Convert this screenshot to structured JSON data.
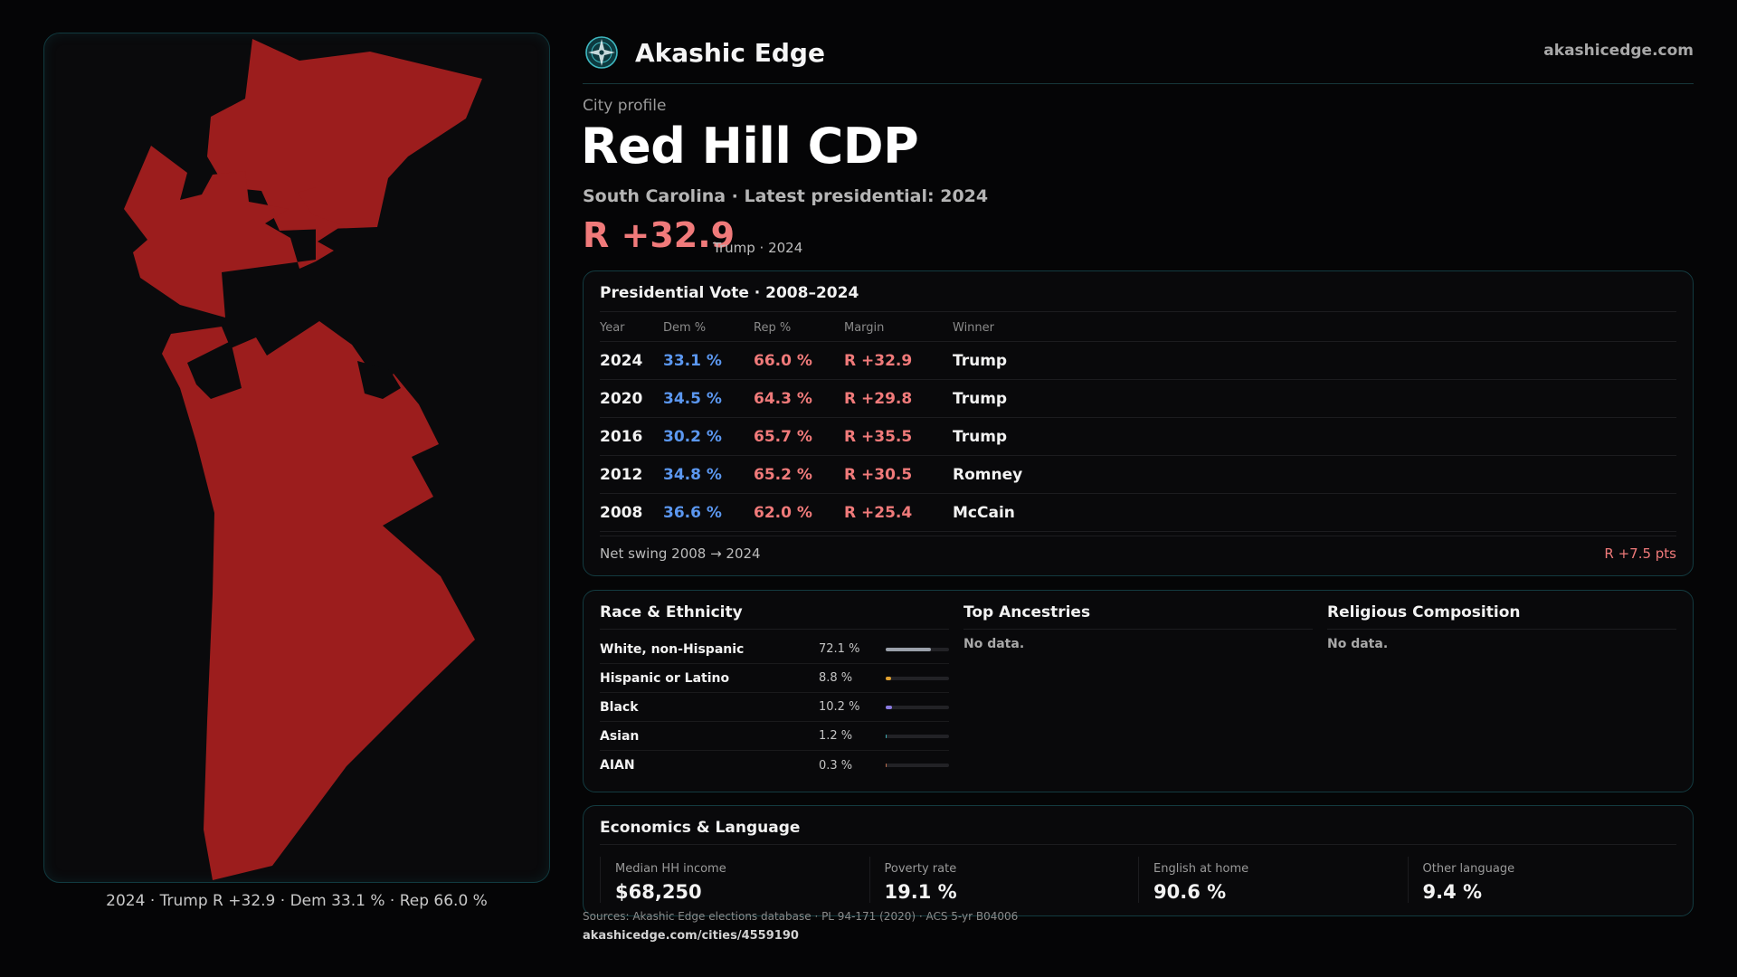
{
  "brand": {
    "name": "Akashic Edge",
    "logo_icon": "compass-star-icon",
    "site": "akashicedge.com"
  },
  "profile": {
    "eyebrow": "City profile",
    "title": "Red Hill CDP",
    "subtitle": "South Carolina · Latest presidential: 2024",
    "margin": "R +32.9",
    "margin_note": "Trump · 2024"
  },
  "map": {
    "fill_color": "#9c1d1d",
    "caption": "2024 · Trump R +32.9 · Dem 33.1 % · Rep 66.0 %"
  },
  "vote": {
    "title": "Presidential Vote · 2008–2024",
    "headers": {
      "year": "Year",
      "dem": "Dem %",
      "rep": "Rep %",
      "margin": "Margin",
      "winner": "Winner"
    },
    "rows": [
      {
        "year": "2024",
        "dem": "33.1 %",
        "rep": "66.0 %",
        "margin": "R +32.9",
        "winner": "Trump"
      },
      {
        "year": "2020",
        "dem": "34.5 %",
        "rep": "64.3 %",
        "margin": "R +29.8",
        "winner": "Trump"
      },
      {
        "year": "2016",
        "dem": "30.2 %",
        "rep": "65.7 %",
        "margin": "R +35.5",
        "winner": "Trump"
      },
      {
        "year": "2012",
        "dem": "34.8 %",
        "rep": "65.2 %",
        "margin": "R +30.5",
        "winner": "Romney"
      },
      {
        "year": "2008",
        "dem": "36.6 %",
        "rep": "62.0 %",
        "margin": "R +25.4",
        "winner": "McCain"
      }
    ],
    "swing_label": "Net swing 2008 → 2024",
    "swing_value": "R +7.5 pts"
  },
  "race": {
    "title": "Race & Ethnicity",
    "rows": [
      {
        "name": "White, non-Hispanic",
        "pct": "72.1 %",
        "share": 0.721,
        "color": "#9aa0aa"
      },
      {
        "name": "Hispanic or Latino",
        "pct": "8.8 %",
        "share": 0.088,
        "color": "#e0a030"
      },
      {
        "name": "Black",
        "pct": "10.2 %",
        "share": 0.102,
        "color": "#8a7ae0"
      },
      {
        "name": "Asian",
        "pct": "1.2 %",
        "share": 0.012,
        "color": "#40b0b8"
      },
      {
        "name": "AIAN",
        "pct": "0.3 %",
        "share": 0.003,
        "color": "#c07050"
      }
    ]
  },
  "ancestries": {
    "title": "Top Ancestries",
    "empty": "No data."
  },
  "religion": {
    "title": "Religious Composition",
    "empty": "No data."
  },
  "economics": {
    "title": "Economics & Language",
    "stats": [
      {
        "label": "Median HH income",
        "value": "$68,250"
      },
      {
        "label": "Poverty rate",
        "value": "19.1 %"
      },
      {
        "label": "English at home",
        "value": "90.6 %"
      },
      {
        "label": "Other language",
        "value": "9.4 %"
      }
    ]
  },
  "footer": {
    "sources": "Sources: Akashic Edge elections database · PL 94-171 (2020) · ACS 5-yr B04006",
    "permalink": "akashicedge.com/cities/4559190"
  }
}
